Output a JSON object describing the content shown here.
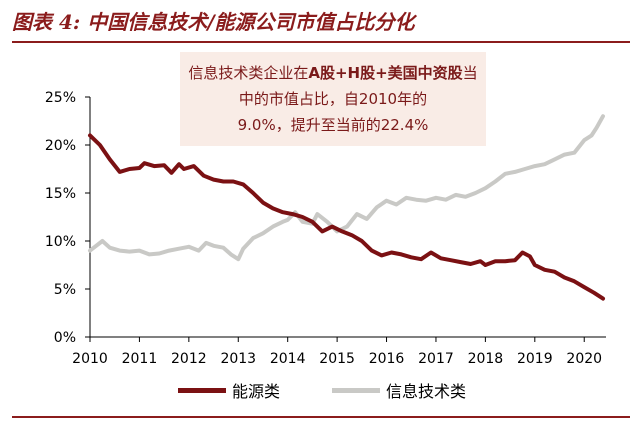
{
  "header": {
    "title": "图表 4:  中国信息技术/能源公司市值占比分化"
  },
  "annotation": {
    "seg1": "信息技术类企业在",
    "seg2": "A股+H股+美国中资股",
    "seg3": "当中的市值占比，自2010年的",
    "seg4": "9.0%，提升至当前的22.4%"
  },
  "chart_data": {
    "type": "line",
    "title": "",
    "xlabel": "",
    "ylabel": "",
    "xlim": [
      2010,
      2020.4
    ],
    "ylim": [
      0,
      25
    ],
    "grid": false,
    "legend_position": "bottom",
    "x_ticks": [
      "2010",
      "2011",
      "2012",
      "2013",
      "2014",
      "2015",
      "2016",
      "2017",
      "2018",
      "2019",
      "2020"
    ],
    "y_ticks": [
      "0%",
      "5%",
      "10%",
      "15%",
      "20%",
      "25%"
    ],
    "series": [
      {
        "name": "能源类",
        "color": "#7b1113",
        "points": [
          [
            2010.0,
            21.0
          ],
          [
            2010.2,
            20.0
          ],
          [
            2010.4,
            18.5
          ],
          [
            2010.6,
            17.2
          ],
          [
            2010.8,
            17.5
          ],
          [
            2011.0,
            17.6
          ],
          [
            2011.1,
            18.1
          ],
          [
            2011.3,
            17.8
          ],
          [
            2011.5,
            17.9
          ],
          [
            2011.65,
            17.1
          ],
          [
            2011.8,
            18.0
          ],
          [
            2011.9,
            17.5
          ],
          [
            2012.1,
            17.8
          ],
          [
            2012.3,
            16.8
          ],
          [
            2012.5,
            16.4
          ],
          [
            2012.7,
            16.2
          ],
          [
            2012.9,
            16.2
          ],
          [
            2013.1,
            15.9
          ],
          [
            2013.3,
            15.0
          ],
          [
            2013.5,
            14.0
          ],
          [
            2013.7,
            13.4
          ],
          [
            2013.9,
            13.0
          ],
          [
            2014.1,
            12.8
          ],
          [
            2014.3,
            12.5
          ],
          [
            2014.5,
            12.0
          ],
          [
            2014.7,
            11.0
          ],
          [
            2014.9,
            11.5
          ],
          [
            2015.1,
            11.0
          ],
          [
            2015.3,
            10.6
          ],
          [
            2015.5,
            10.0
          ],
          [
            2015.7,
            9.0
          ],
          [
            2015.9,
            8.5
          ],
          [
            2016.1,
            8.8
          ],
          [
            2016.3,
            8.6
          ],
          [
            2016.5,
            8.3
          ],
          [
            2016.7,
            8.1
          ],
          [
            2016.9,
            8.8
          ],
          [
            2017.1,
            8.2
          ],
          [
            2017.3,
            8.0
          ],
          [
            2017.5,
            7.8
          ],
          [
            2017.7,
            7.6
          ],
          [
            2017.9,
            7.9
          ],
          [
            2018.0,
            7.5
          ],
          [
            2018.2,
            7.9
          ],
          [
            2018.4,
            7.9
          ],
          [
            2018.6,
            8.0
          ],
          [
            2018.75,
            8.8
          ],
          [
            2018.9,
            8.4
          ],
          [
            2019.0,
            7.5
          ],
          [
            2019.2,
            7.0
          ],
          [
            2019.4,
            6.8
          ],
          [
            2019.6,
            6.2
          ],
          [
            2019.8,
            5.8
          ],
          [
            2020.0,
            5.2
          ],
          [
            2020.2,
            4.6
          ],
          [
            2020.38,
            4.0
          ]
        ]
      },
      {
        "name": "信息技术类",
        "color": "#c9c9c6",
        "points": [
          [
            2010.0,
            9.0
          ],
          [
            2010.1,
            9.4
          ],
          [
            2010.25,
            10.0
          ],
          [
            2010.4,
            9.3
          ],
          [
            2010.6,
            9.0
          ],
          [
            2010.8,
            8.9
          ],
          [
            2011.0,
            9.0
          ],
          [
            2011.2,
            8.6
          ],
          [
            2011.4,
            8.7
          ],
          [
            2011.6,
            9.0
          ],
          [
            2011.8,
            9.2
          ],
          [
            2012.0,
            9.4
          ],
          [
            2012.2,
            9.0
          ],
          [
            2012.35,
            9.8
          ],
          [
            2012.5,
            9.5
          ],
          [
            2012.7,
            9.3
          ],
          [
            2012.85,
            8.6
          ],
          [
            2013.0,
            8.1
          ],
          [
            2013.1,
            9.2
          ],
          [
            2013.3,
            10.3
          ],
          [
            2013.5,
            10.8
          ],
          [
            2013.7,
            11.5
          ],
          [
            2013.9,
            12.0
          ],
          [
            2014.0,
            12.2
          ],
          [
            2014.15,
            13.0
          ],
          [
            2014.3,
            12.0
          ],
          [
            2014.5,
            11.8
          ],
          [
            2014.6,
            12.8
          ],
          [
            2014.8,
            12.0
          ],
          [
            2015.0,
            11.0
          ],
          [
            2015.2,
            11.5
          ],
          [
            2015.4,
            12.8
          ],
          [
            2015.6,
            12.3
          ],
          [
            2015.8,
            13.5
          ],
          [
            2016.0,
            14.2
          ],
          [
            2016.2,
            13.8
          ],
          [
            2016.4,
            14.5
          ],
          [
            2016.6,
            14.3
          ],
          [
            2016.8,
            14.2
          ],
          [
            2017.0,
            14.5
          ],
          [
            2017.2,
            14.3
          ],
          [
            2017.4,
            14.8
          ],
          [
            2017.6,
            14.6
          ],
          [
            2017.8,
            15.0
          ],
          [
            2018.0,
            15.5
          ],
          [
            2018.2,
            16.2
          ],
          [
            2018.4,
            17.0
          ],
          [
            2018.6,
            17.2
          ],
          [
            2018.8,
            17.5
          ],
          [
            2019.0,
            17.8
          ],
          [
            2019.2,
            18.0
          ],
          [
            2019.4,
            18.5
          ],
          [
            2019.6,
            19.0
          ],
          [
            2019.8,
            19.2
          ],
          [
            2020.0,
            20.5
          ],
          [
            2020.15,
            21.0
          ],
          [
            2020.25,
            21.8
          ],
          [
            2020.38,
            23.0
          ]
        ]
      }
    ]
  }
}
